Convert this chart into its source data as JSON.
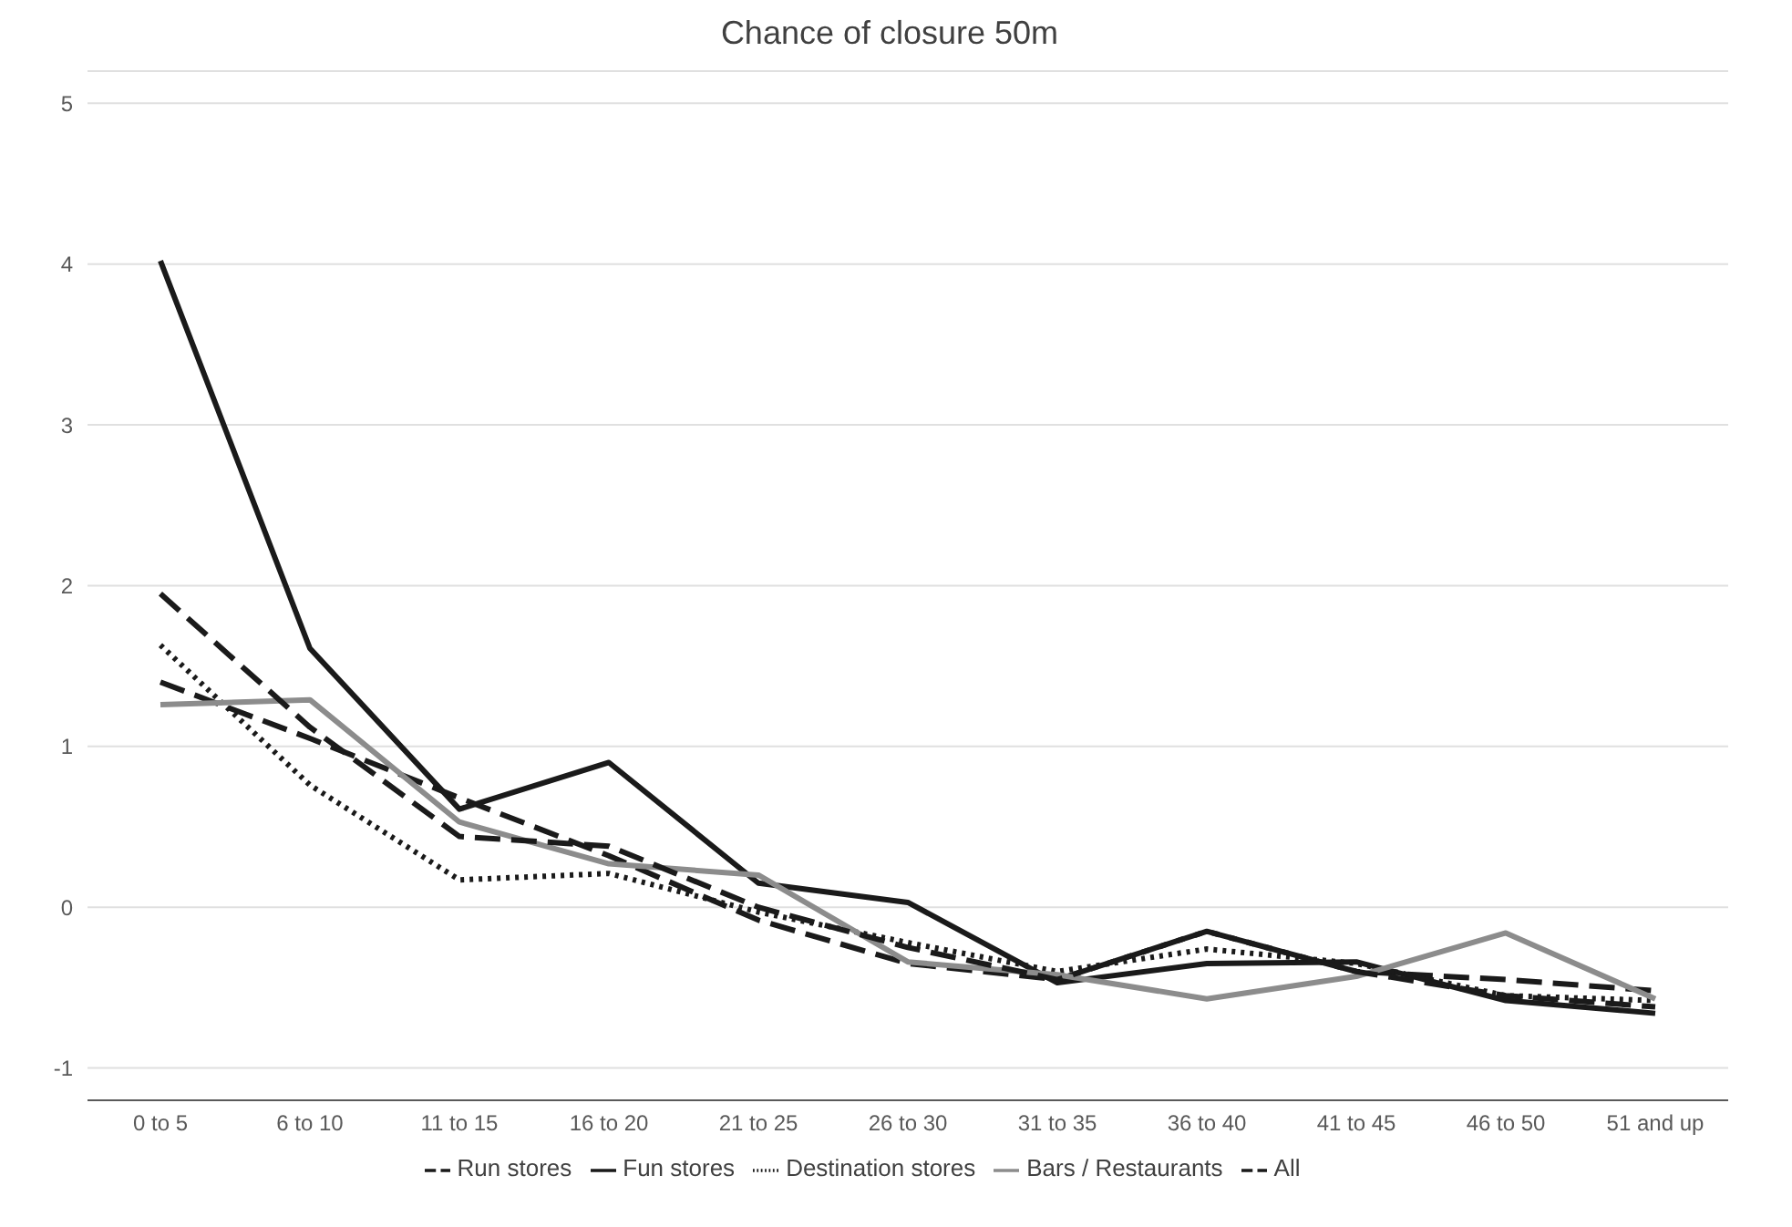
{
  "chart_data": {
    "type": "line",
    "title": "Chance of closure 50m",
    "categories": [
      "0 to 5",
      "6 to 10",
      "11 to 15",
      "16 to 20",
      "21 to 25",
      "26 to 30",
      "31 to 35",
      "36 to 40",
      "41 to 45",
      "46 to 50",
      "51 and up"
    ],
    "series": [
      {
        "name": "Run stores",
        "color": "#1a1a1a",
        "line_style": "dashed",
        "values": [
          1.4,
          1.05,
          0.68,
          0.32,
          -0.08,
          -0.35,
          -0.45,
          -0.15,
          -0.4,
          -0.45,
          -0.52
        ]
      },
      {
        "name": "Fun stores",
        "color": "#1a1a1a",
        "line_style": "solid",
        "values": [
          4.02,
          1.61,
          0.61,
          0.9,
          0.15,
          0.03,
          -0.47,
          -0.35,
          -0.34,
          -0.58,
          -0.66
        ]
      },
      {
        "name": "Destination stores",
        "color": "#1a1a1a",
        "line_style": "dotted",
        "values": [
          1.63,
          0.76,
          0.17,
          0.21,
          -0.03,
          -0.22,
          -0.4,
          -0.26,
          -0.35,
          -0.55,
          -0.58
        ]
      },
      {
        "name": "Bars / Restaurants",
        "color": "#8c8c8c",
        "line_style": "solid",
        "values": [
          1.26,
          1.29,
          0.53,
          0.27,
          0.2,
          -0.34,
          -0.42,
          -0.57,
          -0.43,
          -0.16,
          -0.57
        ]
      },
      {
        "name": "All",
        "color": "#1a1a1a",
        "line_style": "dashed",
        "values": [
          1.95,
          1.12,
          0.44,
          0.38,
          0.0,
          -0.25,
          -0.45,
          -0.15,
          -0.4,
          -0.55,
          -0.62
        ]
      }
    ],
    "ylim": [
      -1.2,
      5.2
    ],
    "yticks": [
      -1,
      0,
      1,
      2,
      3,
      4,
      5
    ],
    "grid": "y",
    "legend": "bottom",
    "marker": "none"
  }
}
